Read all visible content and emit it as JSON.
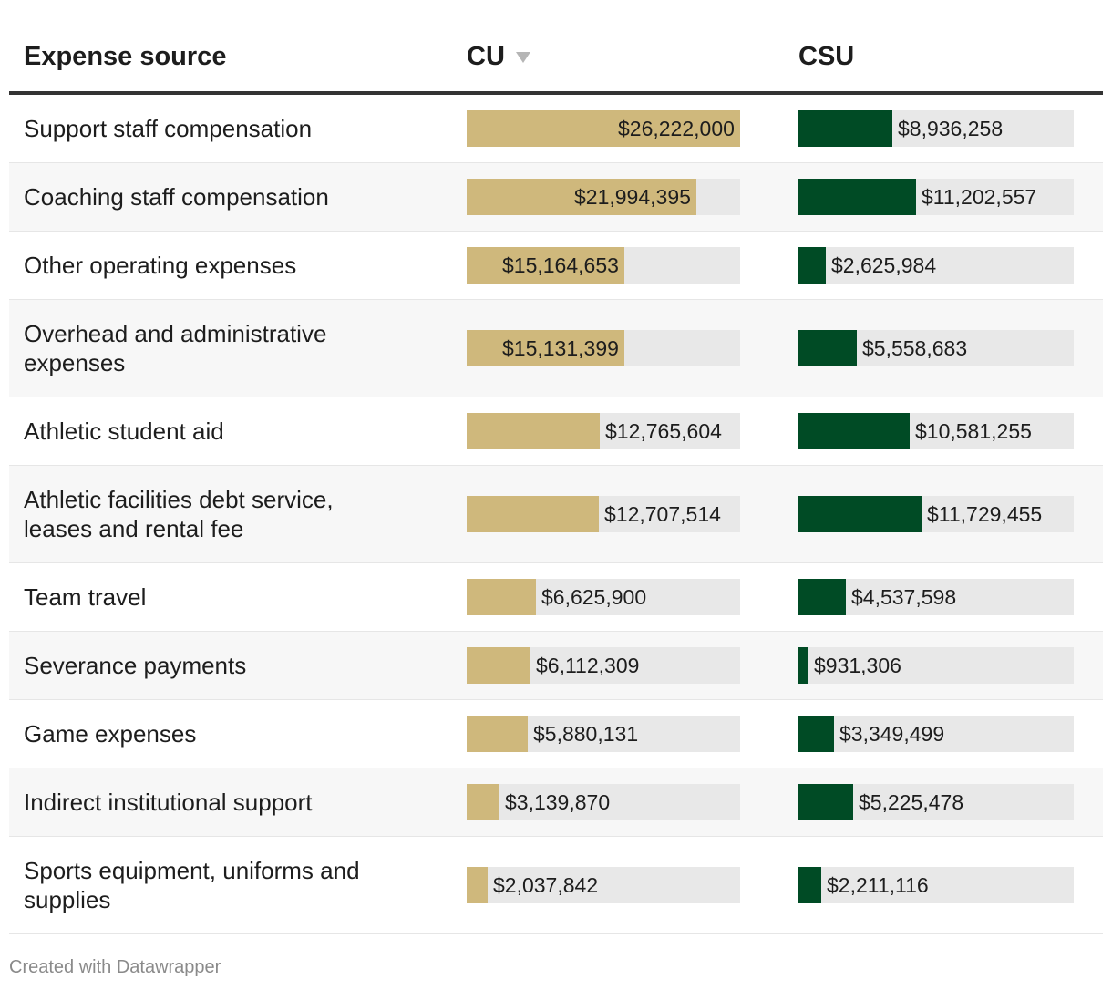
{
  "header": {
    "col_source": "Expense source",
    "col_cu": "CU",
    "col_csu": "CSU"
  },
  "footer": "Created with Datawrapper",
  "colors": {
    "cu": "#cfb87c",
    "csu": "#004b25",
    "track": "#e8e8e8"
  },
  "chart_data": {
    "type": "table",
    "title": "",
    "columns": [
      "Expense source",
      "CU",
      "CSU"
    ],
    "sorted_by": "CU",
    "max": {
      "cu": 26222000,
      "csu": 26222000
    },
    "rows": [
      {
        "label": "Support staff compensation",
        "cu": 26222000,
        "cu_text": "$26,222,000",
        "csu": 8936258,
        "csu_text": "$8,936,258"
      },
      {
        "label": "Coaching staff compensation",
        "cu": 21994395,
        "cu_text": "$21,994,395",
        "csu": 11202557,
        "csu_text": "$11,202,557"
      },
      {
        "label": "Other operating expenses",
        "cu": 15164653,
        "cu_text": "$15,164,653",
        "csu": 2625984,
        "csu_text": "$2,625,984"
      },
      {
        "label": "Overhead and administrative expenses",
        "cu": 15131399,
        "cu_text": "$15,131,399",
        "csu": 5558683,
        "csu_text": "$5,558,683"
      },
      {
        "label": "Athletic student aid",
        "cu": 12765604,
        "cu_text": "$12,765,604",
        "csu": 10581255,
        "csu_text": "$10,581,255"
      },
      {
        "label": "Athletic facilities debt service, leases and rental fee",
        "cu": 12707514,
        "cu_text": "$12,707,514",
        "csu": 11729455,
        "csu_text": "$11,729,455"
      },
      {
        "label": "Team travel",
        "cu": 6625900,
        "cu_text": "$6,625,900",
        "csu": 4537598,
        "csu_text": "$4,537,598"
      },
      {
        "label": "Severance payments",
        "cu": 6112309,
        "cu_text": "$6,112,309",
        "csu": 931306,
        "csu_text": "$931,306"
      },
      {
        "label": "Game expenses",
        "cu": 5880131,
        "cu_text": "$5,880,131",
        "csu": 3349499,
        "csu_text": "$3,349,499"
      },
      {
        "label": "Indirect institutional support",
        "cu": 3139870,
        "cu_text": "$3,139,870",
        "csu": 5225478,
        "csu_text": "$5,225,478"
      },
      {
        "label": "Sports equipment, uniforms and supplies",
        "cu": 2037842,
        "cu_text": "$2,037,842",
        "csu": 2211116,
        "csu_text": "$2,211,116"
      }
    ]
  }
}
